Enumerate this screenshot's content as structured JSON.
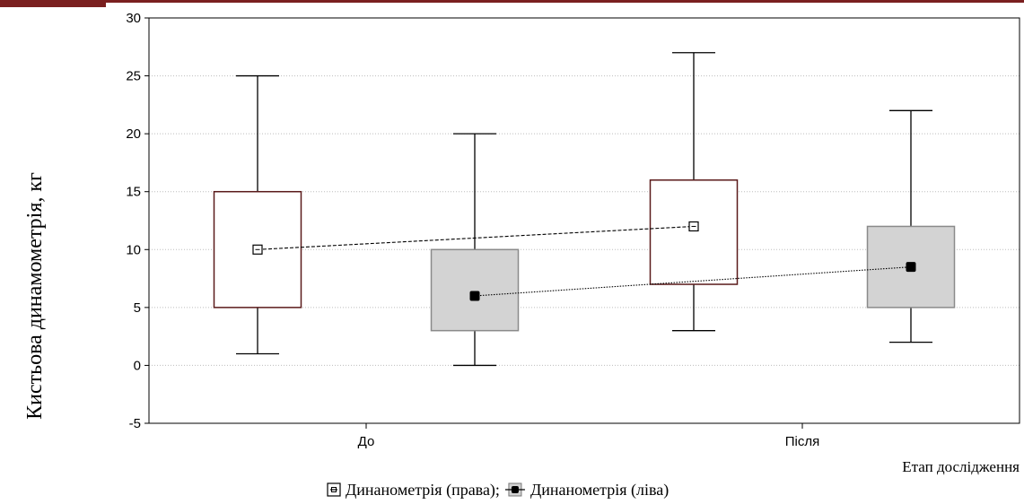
{
  "chart_data": {
    "type": "boxplot",
    "title": "",
    "ylabel": "Кистьова динамометрія, кг",
    "xlabel": "Етап дослідження",
    "ylim": [
      -5,
      30
    ],
    "yticks": [
      -5,
      0,
      5,
      10,
      15,
      20,
      25,
      30
    ],
    "categories": [
      "До",
      "Після"
    ],
    "grid": "horizontal dotted",
    "legend_text": "Динанометрія (права); Динанометрія (ліва)",
    "series": [
      {
        "name": "Динанометрія (права)",
        "marker": "open-square",
        "box_fill": "#ffffff",
        "box_stroke": "#5a1a1a",
        "line_style": "dashed",
        "boxes": [
          {
            "category": "До",
            "min": 1,
            "q1": 5,
            "median": 10,
            "q3": 15,
            "max": 25
          },
          {
            "category": "Після",
            "min": 3,
            "q1": 7,
            "median": 12,
            "q3": 16,
            "max": 27
          }
        ]
      },
      {
        "name": "Динанометрія (ліва)",
        "marker": "filled-square",
        "box_fill": "#d3d3d3",
        "box_stroke": "#8a8a8a",
        "line_style": "dotted",
        "boxes": [
          {
            "category": "До",
            "min": 0,
            "q1": 3,
            "median": 6,
            "q3": 10,
            "max": 20
          },
          {
            "category": "Після",
            "min": 2,
            "q1": 5,
            "median": 8.5,
            "q3": 12,
            "max": 22
          }
        ]
      }
    ]
  },
  "colors": {
    "top_accent": "#7a1f1f",
    "axis": "#000000",
    "grid": "#bdbdbd"
  }
}
